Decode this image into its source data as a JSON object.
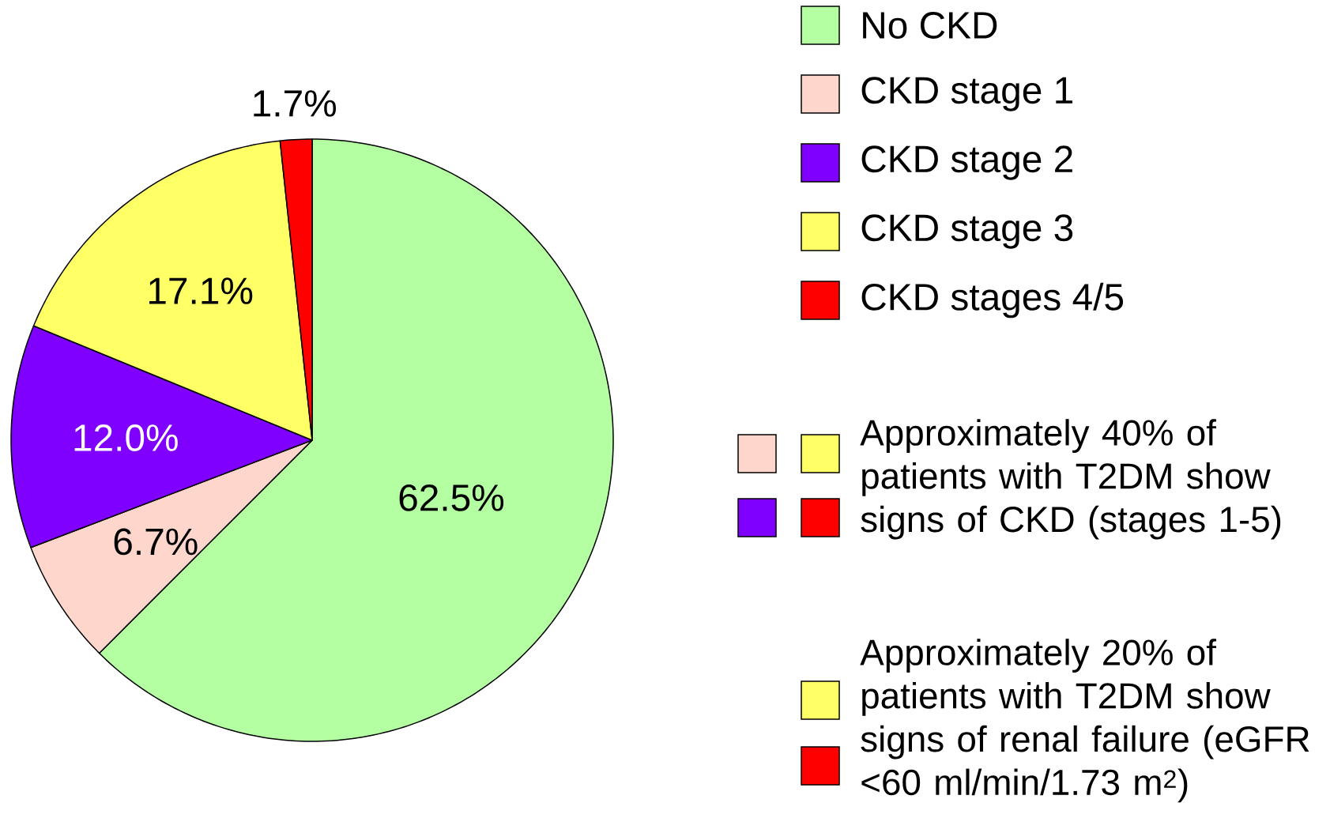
{
  "chart_data": {
    "type": "pie",
    "categories": [
      "No CKD",
      "CKD stage 1",
      "CKD stage 2",
      "CKD stage 3",
      "CKD stages 4/5"
    ],
    "values": [
      62.5,
      6.7,
      12.0,
      17.1,
      1.7
    ],
    "colors": [
      "#b3ffa1",
      "#ffd6cc",
      "#8000ff",
      "#ffff66",
      "#ff0000"
    ],
    "value_labels": [
      "62.5%",
      "6.7%",
      "12.0%",
      "17.1%",
      "1.7%"
    ],
    "legend": "top right",
    "annotations": [
      "Approximately 40% of patients with T2DM show signs of CKD (stages 1-5)",
      "Approximately 20% of patients with T2DM show signs of renal failure (eGFR <60 ml/min/1.73 m$^{2}$)"
    ]
  }
}
